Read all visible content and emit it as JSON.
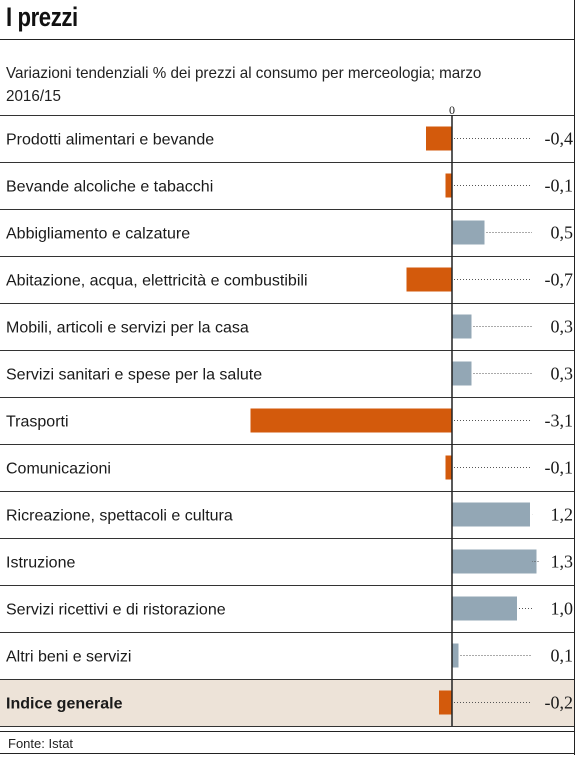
{
  "title": "I prezzi",
  "subtitle": "Variazioni tendenziali % dei prezzi al consumo per merceologia; marzo 2016/15",
  "source": "Fonte: Istat",
  "colors": {
    "negative": "#d35a0c",
    "positive": "#93a7b5",
    "highlight_row": "#ede3d8",
    "leader": "#555555"
  },
  "chart_data": {
    "type": "bar",
    "orientation": "horizontal",
    "zero_label": "0",
    "categories": [
      "Prodotti alimentari e bevande",
      "Bevande alcoliche e tabacchi",
      "Abbigliamento e calzature",
      "Abitazione, acqua, elettricità e combustibili",
      "Mobili, articoli e servizi per la casa",
      "Servizi sanitari e spese per la salute",
      "Trasporti",
      "Comunicazioni",
      "Ricreazione, spettacoli e cultura",
      "Istruzione",
      "Servizi ricettivi e di ristorazione",
      "Altri beni e servizi",
      "Indice generale"
    ],
    "values": [
      -0.4,
      -0.1,
      0.5,
      -0.7,
      0.3,
      0.3,
      -3.1,
      -0.1,
      1.2,
      1.3,
      1.0,
      0.1,
      -0.2
    ],
    "value_labels": [
      "-0,4",
      "-0,1",
      "0,5",
      "-0,7",
      "0,3",
      "0,3",
      "-3,1",
      "-0,1",
      "1,2",
      "1,3",
      "1,0",
      "0,1",
      "-0,2"
    ],
    "highlighted": "Indice generale",
    "xlim": [
      -3.1,
      1.3
    ],
    "grid": false
  }
}
